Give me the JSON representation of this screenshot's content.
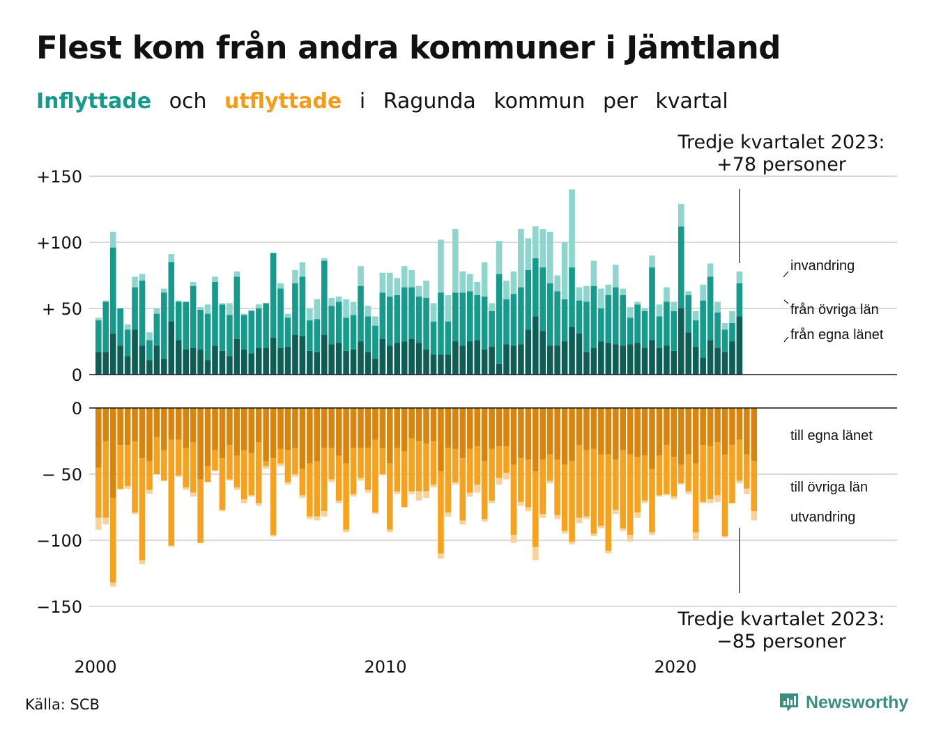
{
  "header": {
    "title": "Flest kom från andra kommuner i Jämtland",
    "subtitle": [
      "Inflyttade",
      "och",
      "utflyttade",
      "i",
      "Ragunda",
      "kommun",
      "per",
      "kvartal"
    ]
  },
  "footer": {
    "source": "Källa: SCB",
    "logo_text": "Newsworthy"
  },
  "colors": {
    "in_own": "#0e5e56",
    "in_other": "#159a8c",
    "in_abroad": "#8ed5ce",
    "out_own": "#d9850d",
    "out_other": "#f7a21f",
    "out_abroad": "#f9d29a",
    "grid": "#d9d9d9",
    "title_in": "#159a8c",
    "title_out": "#f39c1b",
    "logo": "#3a8f7f"
  },
  "chart_data": [
    {
      "type": "bar",
      "stacked": true,
      "grid": true,
      "x_start": "2000 Q1",
      "x_ticks": [
        "2000",
        "2010",
        "2020"
      ],
      "y_ticks": [
        "0",
        "+ 50",
        "+100",
        "+150"
      ],
      "ylim": [
        0,
        150
      ],
      "series_labels": [
        "från egna länet",
        "från övriga län",
        "invandring"
      ],
      "annotation": [
        "Tredje kvartalet 2023:",
        "+78 personer"
      ],
      "total": [
        43,
        56,
        108,
        50,
        38,
        74,
        76,
        32,
        50,
        65,
        91,
        56,
        55,
        70,
        51,
        53,
        74,
        54,
        54,
        78,
        46,
        49,
        53,
        54,
        92,
        69,
        46,
        79,
        85,
        50,
        57,
        88,
        58,
        59,
        57,
        55,
        82,
        52,
        44,
        77,
        77,
        73,
        82,
        79,
        67,
        71,
        54,
        102,
        60,
        110,
        78,
        76,
        70,
        85,
        54,
        101,
        71,
        78,
        110,
        103,
        112,
        110,
        108,
        75,
        100,
        140,
        66,
        67,
        86,
        65,
        68,
        83,
        65,
        51,
        55,
        50,
        90,
        53,
        66,
        55,
        129,
        63,
        48,
        68,
        84,
        55,
        39,
        48,
        78
      ],
      "own": [
        17,
        17,
        31,
        22,
        14,
        34,
        22,
        11,
        22,
        12,
        40,
        26,
        19,
        20,
        19,
        11,
        22,
        18,
        14,
        27,
        19,
        16,
        20,
        20,
        28,
        20,
        21,
        30,
        29,
        18,
        17,
        30,
        23,
        24,
        18,
        19,
        25,
        17,
        12,
        27,
        22,
        24,
        25,
        27,
        24,
        19,
        15,
        15,
        15,
        25,
        22,
        25,
        26,
        19,
        21,
        8,
        23,
        22,
        23,
        34,
        44,
        33,
        22,
        22,
        25,
        36,
        31,
        17,
        20,
        25,
        24,
        23,
        22,
        23,
        24,
        20,
        26,
        20,
        22,
        18,
        50,
        32,
        21,
        13,
        26,
        20,
        17,
        25,
        44
      ],
      "other": [
        24,
        38,
        65,
        28,
        20,
        32,
        49,
        15,
        24,
        50,
        45,
        29,
        36,
        47,
        30,
        35,
        48,
        35,
        31,
        47,
        26,
        32,
        30,
        34,
        64,
        45,
        22,
        39,
        45,
        23,
        25,
        56,
        29,
        31,
        25,
        26,
        42,
        27,
        25,
        35,
        37,
        36,
        41,
        39,
        35,
        39,
        25,
        47,
        25,
        37,
        40,
        38,
        34,
        40,
        27,
        68,
        34,
        39,
        43,
        45,
        44,
        48,
        47,
        41,
        32,
        45,
        25,
        38,
        47,
        25,
        36,
        43,
        38,
        20,
        29,
        28,
        55,
        24,
        33,
        30,
        62,
        28,
        20,
        43,
        48,
        27,
        17,
        14,
        25
      ]
    },
    {
      "type": "bar",
      "stacked": true,
      "grid": true,
      "x_start": "2000 Q1",
      "x_ticks": [
        "2000",
        "2010",
        "2020"
      ],
      "y_ticks": [
        "0",
        "− 50",
        "−100",
        "−150"
      ],
      "ylim": [
        -150,
        0
      ],
      "series_labels": [
        "till egna länet",
        "till övriga län",
        "utvandring"
      ],
      "annotation": [
        "Tredje kvartalet 2023:",
        "−85 personer"
      ],
      "total": [
        -92,
        -88,
        -135,
        -62,
        -61,
        -80,
        -118,
        -65,
        -50,
        -55,
        -105,
        -52,
        -62,
        -67,
        -102,
        -56,
        -48,
        -78,
        -55,
        -62,
        -72,
        -67,
        -74,
        -46,
        -97,
        -44,
        -58,
        -52,
        -68,
        -84,
        -85,
        -82,
        -56,
        -72,
        -94,
        -67,
        -55,
        -64,
        -80,
        -51,
        -94,
        -65,
        -75,
        -65,
        -70,
        -68,
        -60,
        -114,
        -82,
        -58,
        -88,
        -67,
        -64,
        -86,
        -72,
        -58,
        -54,
        -102,
        -74,
        -78,
        -115,
        -83,
        -57,
        -84,
        -95,
        -103,
        -87,
        -84,
        -97,
        -91,
        -110,
        -80,
        -93,
        -101,
        -83,
        -72,
        -96,
        -67,
        -66,
        -69,
        -58,
        -65,
        -100,
        -72,
        -72,
        -71,
        -98,
        -72,
        -57,
        -65,
        -85
      ],
      "own": [
        -45,
        -25,
        -68,
        -28,
        -28,
        -25,
        -38,
        -40,
        -22,
        -32,
        -24,
        -24,
        -30,
        -26,
        -54,
        -44,
        -32,
        -38,
        -28,
        -36,
        -32,
        -34,
        -26,
        -40,
        -38,
        -31,
        -32,
        -30,
        -46,
        -42,
        -40,
        -30,
        -30,
        -36,
        -42,
        -30,
        -30,
        -30,
        -24,
        -30,
        -42,
        -30,
        -33,
        -23,
        -25,
        -27,
        -25,
        -48,
        -30,
        -31,
        -38,
        -31,
        -29,
        -40,
        -31,
        -29,
        -29,
        -43,
        -38,
        -39,
        -48,
        -39,
        -35,
        -39,
        -43,
        -40,
        -28,
        -32,
        -31,
        -35,
        -35,
        -39,
        -32,
        -35,
        -37,
        -36,
        -46,
        -36,
        -28,
        -37,
        -43,
        -35,
        -42,
        -28,
        -29,
        -26,
        -35,
        -28,
        -24,
        -35,
        -40
      ],
      "other": [
        -38,
        -58,
        -64,
        -33,
        -31,
        -54,
        -77,
        -22,
        -28,
        -23,
        -80,
        -27,
        -30,
        -38,
        -48,
        -12,
        -15,
        -39,
        -26,
        -24,
        -37,
        -32,
        -46,
        -4,
        -58,
        -11,
        -24,
        -20,
        -20,
        -40,
        -42,
        -48,
        -24,
        -34,
        -50,
        -35,
        -23,
        -32,
        -55,
        -20,
        -50,
        -33,
        -42,
        -40,
        -38,
        -36,
        -33,
        -62,
        -49,
        -25,
        -47,
        -33,
        -29,
        -44,
        -39,
        -24,
        -20,
        -53,
        -33,
        -36,
        -57,
        -41,
        -20,
        -42,
        -50,
        -61,
        -55,
        -50,
        -64,
        -54,
        -73,
        -38,
        -59,
        -61,
        -42,
        -34,
        -48,
        -30,
        -37,
        -30,
        -14,
        -28,
        -52,
        -43,
        -40,
        -40,
        -62,
        -44,
        -31,
        -26,
        -38
      ]
    }
  ]
}
